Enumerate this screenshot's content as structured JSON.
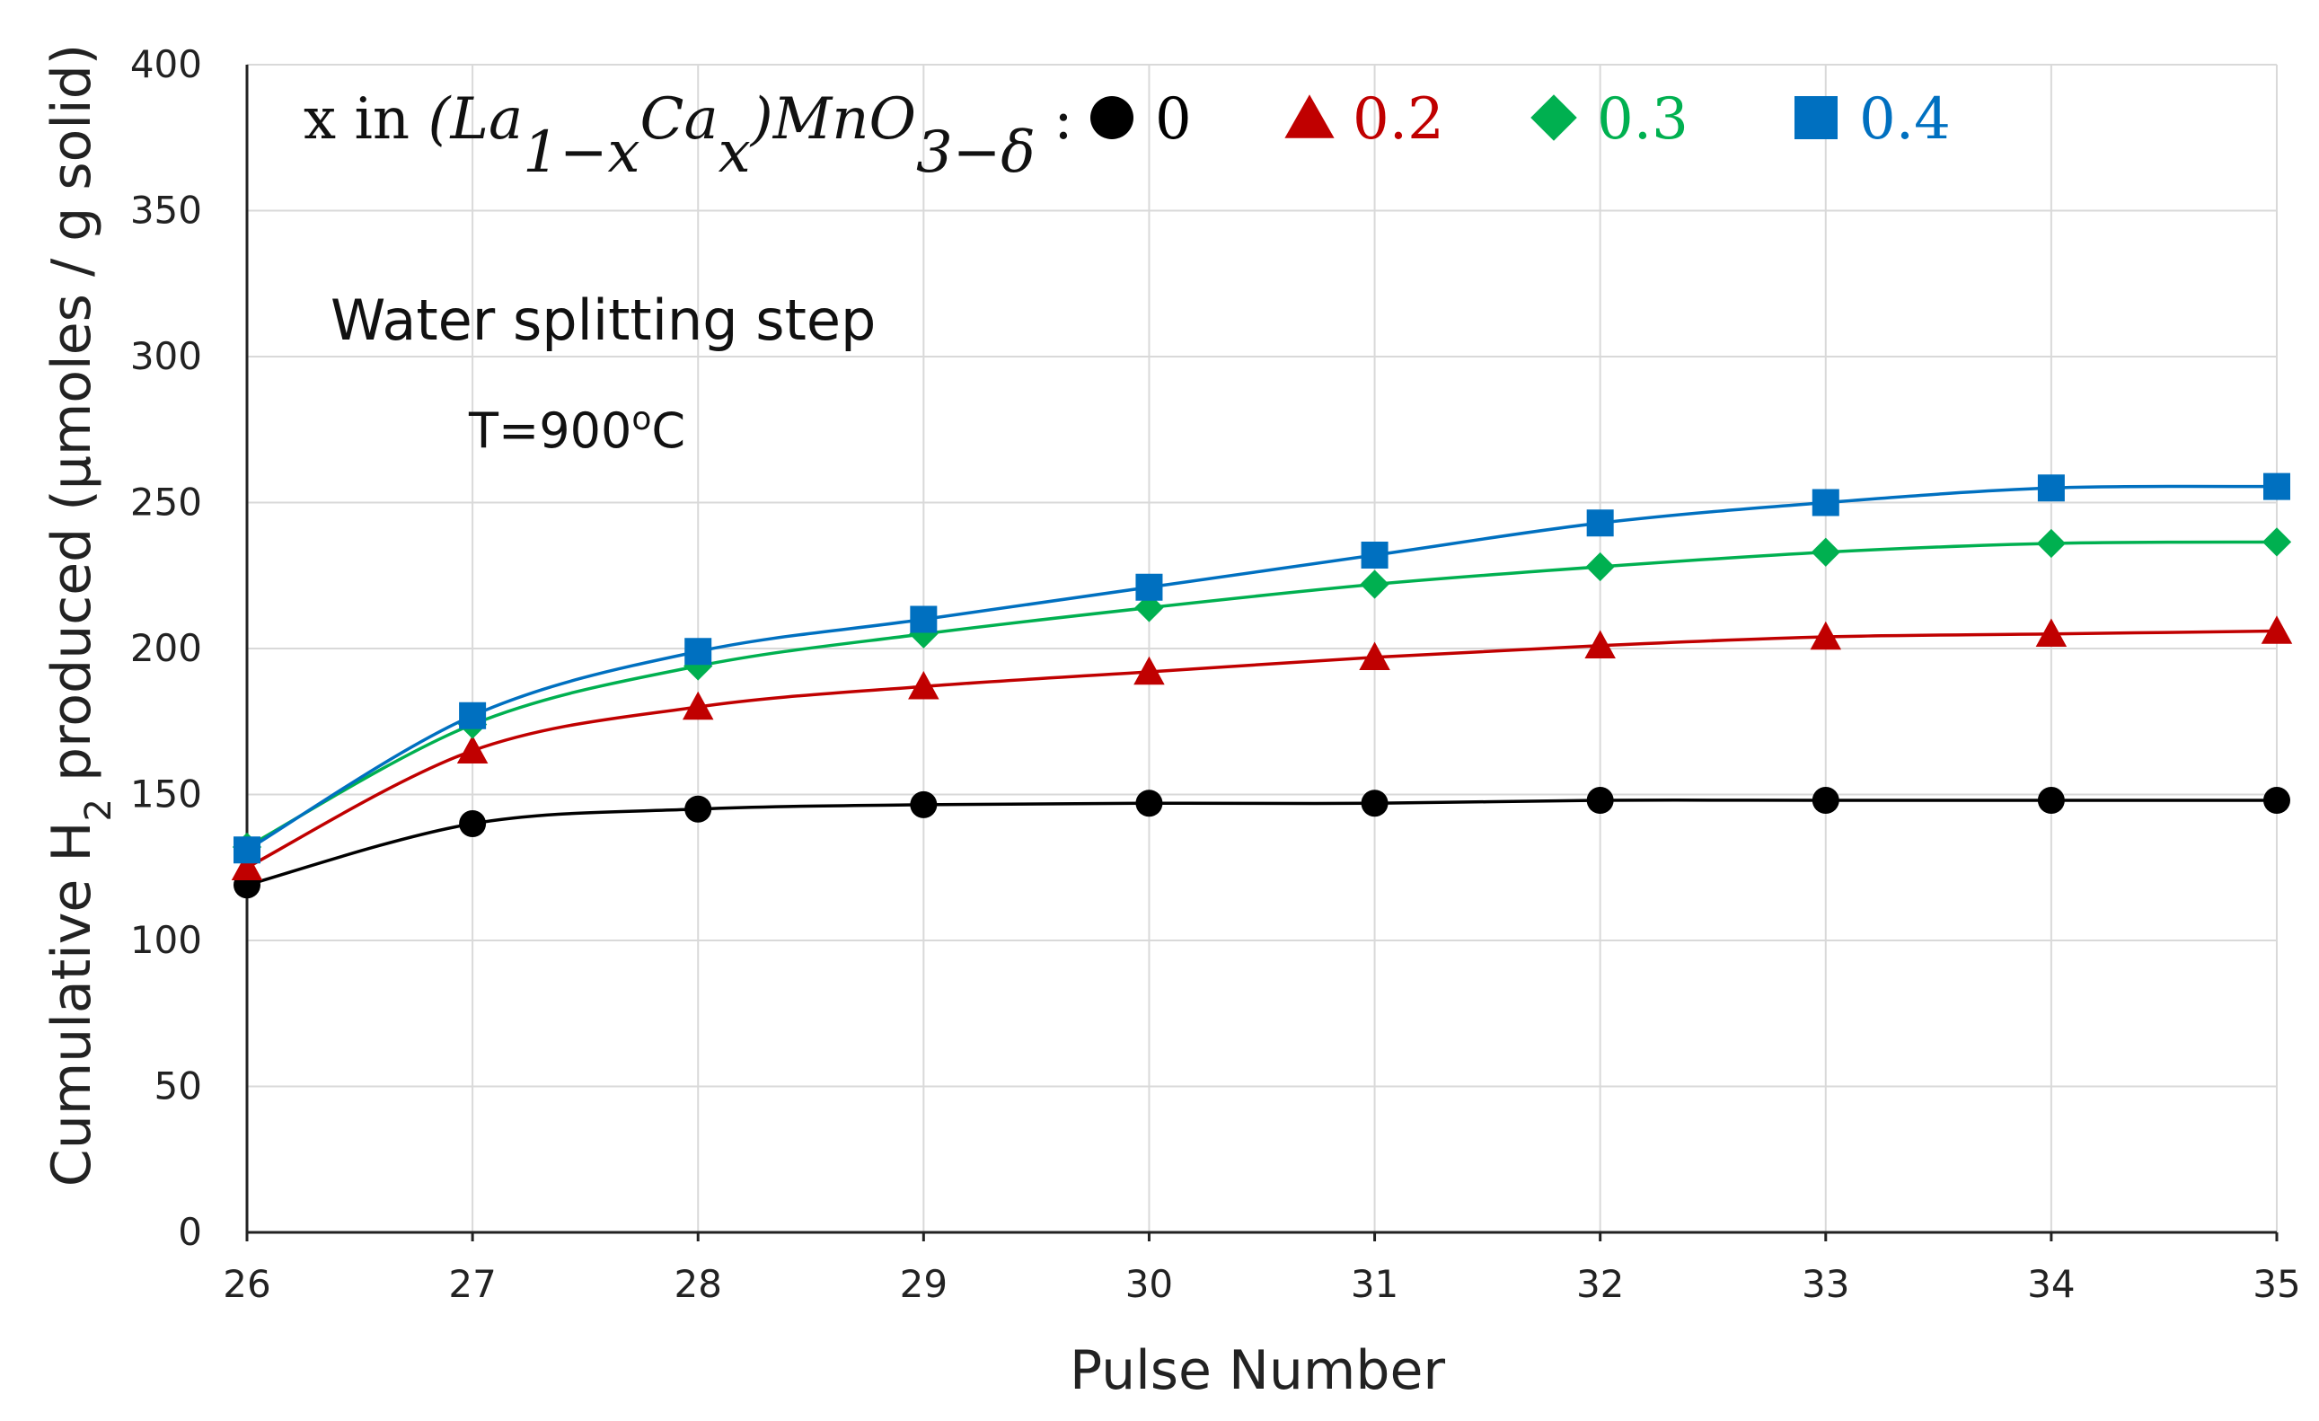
{
  "chart_data": {
    "type": "line",
    "title": "",
    "xlabel": "Pulse Number",
    "ylabel_prefix": "Cumulative H",
    "ylabel_sub": "2",
    "ylabel_suffix": " produced (μmoles / g solid)",
    "x": [
      26,
      27,
      28,
      29,
      30,
      31,
      32,
      33,
      34,
      35
    ],
    "xlim": [
      26,
      35
    ],
    "ylim": [
      0,
      400
    ],
    "yticks": [
      0,
      50,
      100,
      150,
      200,
      250,
      300,
      350,
      400
    ],
    "grid": true,
    "legend": {
      "placement": "top",
      "prefix": "x in ",
      "formula": {
        "open": "(La",
        "sub1": "1−x",
        "mid": "Ca",
        "sub2": "x",
        "close": ")MnO",
        "sub3": "3−δ",
        "colon": " :"
      }
    },
    "annotations": {
      "step": "Water splitting step",
      "temp_prefix": "T=900",
      "temp_sup": "o",
      "temp_suffix": "C"
    },
    "series": [
      {
        "name": "0",
        "color": "#000000",
        "marker": "circle",
        "values": [
          119,
          140,
          145,
          146.5,
          147,
          147,
          148,
          148,
          148,
          148
        ]
      },
      {
        "name": "0.2",
        "color": "#c00000",
        "marker": "triangle",
        "values": [
          125,
          165,
          180,
          187,
          192,
          197,
          201,
          204,
          205,
          206
        ]
      },
      {
        "name": "0.3",
        "color": "#00b050",
        "marker": "diamond",
        "values": [
          132,
          174,
          194,
          205,
          214,
          222,
          228,
          233,
          236,
          236.5
        ]
      },
      {
        "name": "0.4",
        "color": "#0070c0",
        "marker": "square",
        "values": [
          131,
          177,
          199,
          210,
          221,
          232,
          243,
          250,
          255,
          255.5
        ]
      }
    ]
  }
}
